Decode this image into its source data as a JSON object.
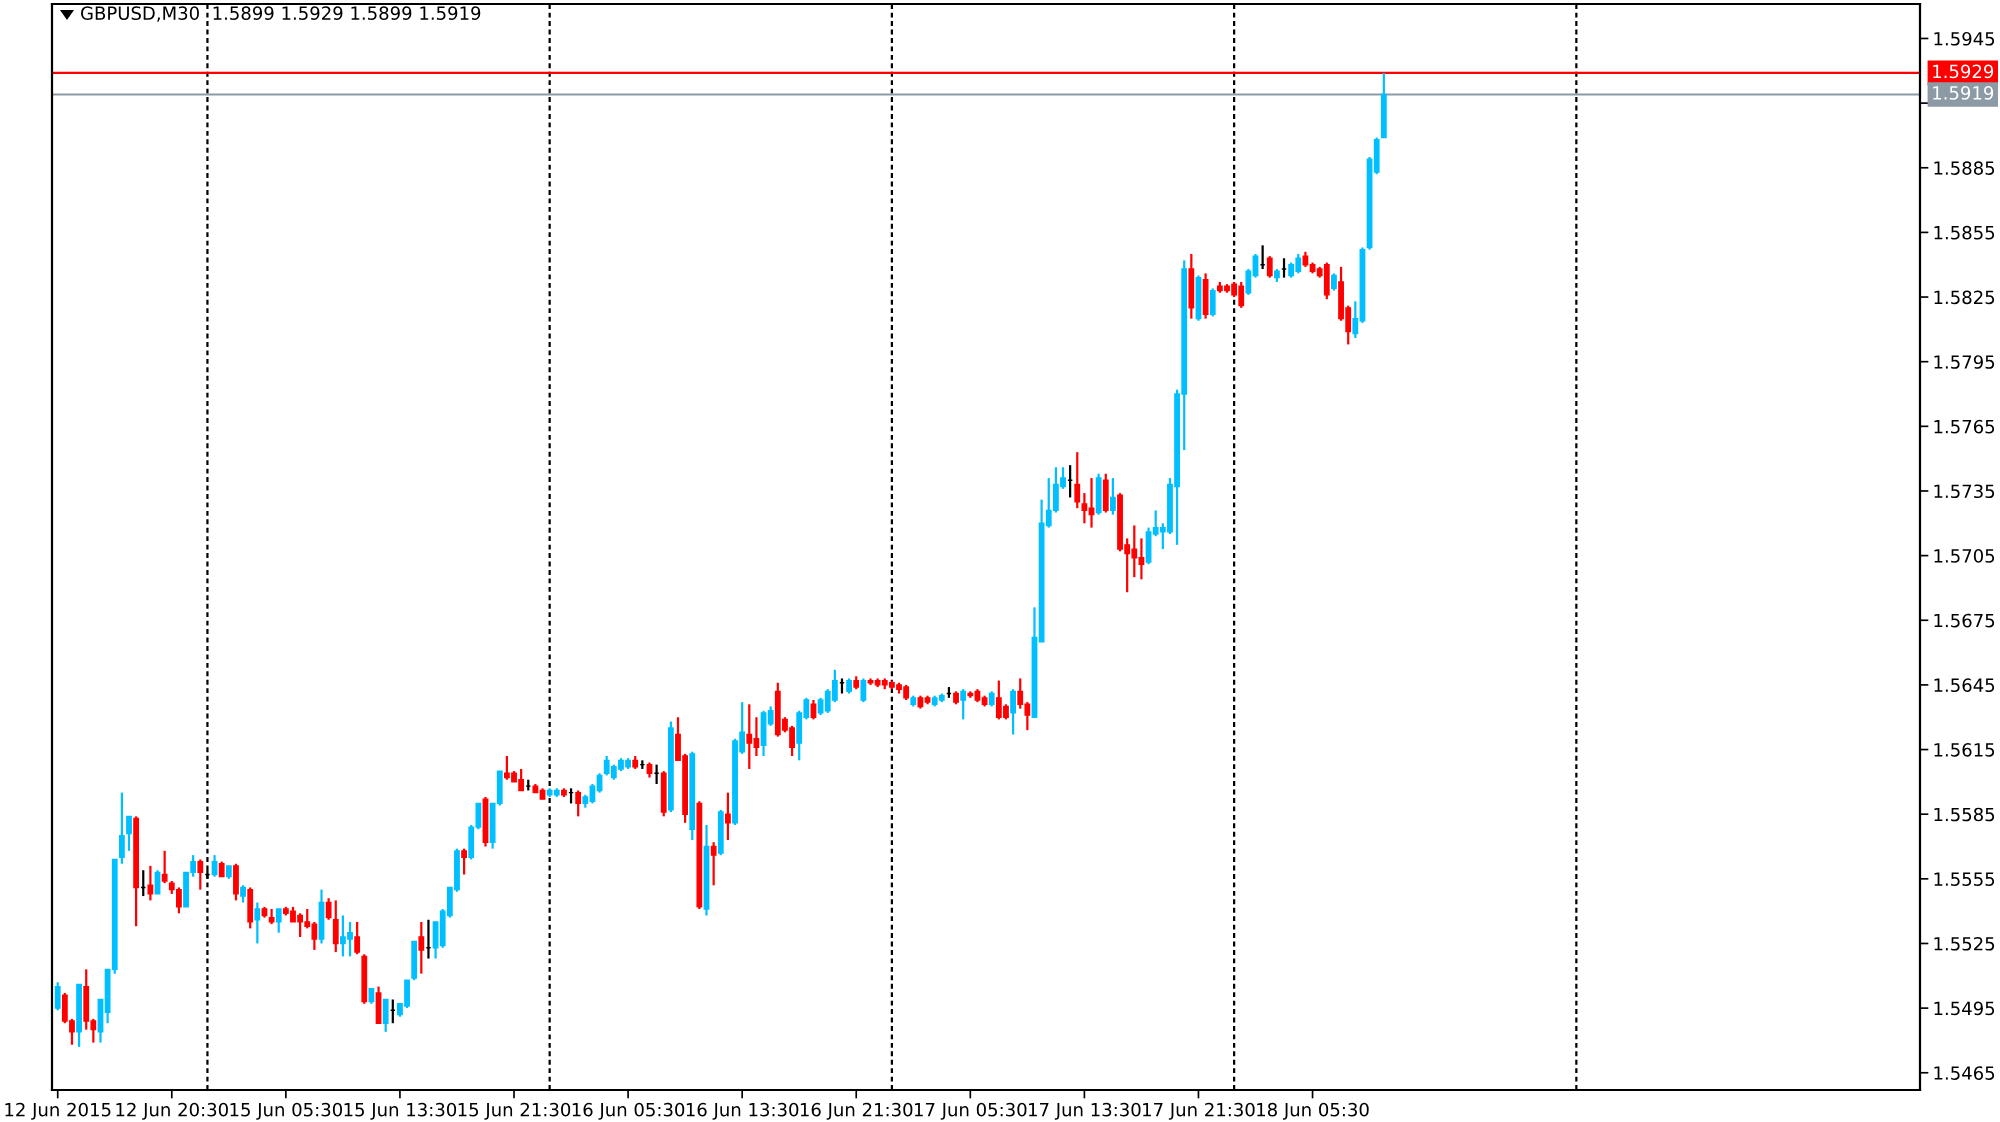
{
  "chart_data": {
    "type": "candlestick",
    "title": "GBPUSD,M30  1.5899 1.5929 1.5899 1.5919",
    "categories": [
      "12 Jun 2015",
      null,
      null,
      null,
      null,
      null,
      null,
      null,
      null,
      null,
      null,
      null,
      null,
      null,
      null,
      null,
      "12 Jun 20:30",
      null,
      null,
      null,
      null,
      null,
      null,
      null,
      null,
      null,
      null,
      null,
      null,
      null,
      null,
      null,
      "15 Jun 05:30",
      null,
      null,
      null,
      null,
      null,
      null,
      null,
      null,
      null,
      null,
      null,
      null,
      null,
      null,
      null,
      "15 Jun 13:30",
      null,
      null,
      null,
      null,
      null,
      null,
      null,
      null,
      null,
      null,
      null,
      null,
      null,
      null,
      null,
      "15 Jun 21:30",
      null,
      null,
      null,
      null,
      null,
      null,
      null,
      null,
      null,
      null,
      null,
      null,
      null,
      null,
      null,
      "16 Jun 05:30",
      null,
      null,
      null,
      null,
      null,
      null,
      null,
      null,
      null,
      null,
      null,
      null,
      null,
      null,
      null,
      "16 Jun 13:30",
      null,
      null,
      null,
      null,
      null,
      null,
      null,
      null,
      null,
      null,
      null,
      null,
      null,
      null,
      null,
      "16 Jun 21:30",
      null,
      null,
      null,
      null,
      null,
      null,
      null,
      null,
      null,
      null,
      null,
      null,
      null,
      null,
      null,
      "17 Jun 05:30",
      null,
      null,
      null,
      null,
      null,
      null,
      null,
      null,
      null,
      null,
      null,
      null,
      null,
      null,
      null,
      "17 Jun 13:30",
      null,
      null,
      null,
      null,
      null,
      null,
      null,
      null,
      null,
      null,
      null,
      null,
      null,
      null,
      null,
      "17 Jun 21:30",
      null,
      null,
      null,
      null,
      null,
      null,
      null,
      null,
      null,
      null,
      null,
      null,
      null,
      null,
      null,
      "18 Jun 05:30",
      null,
      null,
      null,
      null,
      null,
      null,
      null,
      null,
      null,
      null,
      null,
      null,
      null,
      null,
      null,
      null,
      null,
      null,
      null,
      null,
      null,
      null,
      null,
      null,
      null,
      null,
      null,
      null,
      null,
      null,
      null,
      null,
      null,
      null,
      null,
      null,
      null,
      null,
      null,
      null,
      null,
      null,
      null,
      null,
      null,
      null,
      null,
      null,
      null,
      null,
      null,
      null,
      null,
      null,
      null,
      null,
      null,
      null,
      null,
      null,
      null,
      null,
      null,
      null,
      null,
      null,
      null,
      null,
      null,
      null,
      null,
      null,
      null,
      null,
      null,
      null,
      null,
      null,
      null,
      null,
      null,
      null,
      null,
      null,
      null
    ],
    "ohlc": [
      [
        1.5495,
        1.5507,
        1.5494,
        1.5505
      ],
      [
        1.5501,
        1.5502,
        1.5488,
        1.5489
      ],
      [
        1.5489,
        1.549,
        1.5478,
        1.5484
      ],
      [
        1.5484,
        1.5506,
        1.5477,
        1.5506
      ],
      [
        1.5505,
        1.5513,
        1.5485,
        1.5489
      ],
      [
        1.5489,
        1.549,
        1.5479,
        1.5485
      ],
      [
        1.5484,
        1.5499,
        1.5479,
        1.5499
      ],
      [
        1.5493,
        1.5513,
        1.5488,
        1.5513
      ],
      [
        1.5513,
        1.5564,
        1.5511,
        1.5564
      ],
      [
        1.5565,
        1.5595,
        1.5562,
        1.5575
      ],
      [
        1.5576,
        1.5584,
        1.5568,
        1.5584
      ],
      [
        1.5583,
        1.5584,
        1.5533,
        1.5551
      ],
      [
        1.5551,
        1.5559,
        1.5547,
        1.5551
      ],
      [
        1.5552,
        1.5561,
        1.5545,
        1.5548
      ],
      [
        1.5548,
        1.5559,
        1.5548,
        1.5558
      ],
      [
        1.5557,
        1.5568,
        1.5553,
        1.5554
      ],
      [
        1.5553,
        1.5554,
        1.5548,
        1.555
      ],
      [
        1.555,
        1.5551,
        1.5539,
        1.5542
      ],
      [
        1.5542,
        1.5558,
        1.5542,
        1.5558
      ],
      [
        1.5558,
        1.5566,
        1.5556,
        1.5563
      ],
      [
        1.5563,
        1.5564,
        1.555,
        1.5558
      ],
      [
        1.5557,
        1.5559,
        1.5555,
        1.5557
      ],
      [
        1.5557,
        1.5566,
        1.5556,
        1.5563
      ],
      [
        1.5562,
        1.5563,
        1.5556,
        1.5556
      ],
      [
        1.5556,
        1.5561,
        1.5555,
        1.5561
      ],
      [
        1.5561,
        1.5562,
        1.5545,
        1.5548
      ],
      [
        1.5547,
        1.5552,
        1.5544,
        1.5551
      ],
      [
        1.555,
        1.5551,
        1.5532,
        1.5535
      ],
      [
        1.5536,
        1.5544,
        1.5525,
        1.5541
      ],
      [
        1.5541,
        1.5542,
        1.5537,
        1.5538
      ],
      [
        1.5537,
        1.5541,
        1.5534,
        1.5535
      ],
      [
        1.5535,
        1.5541,
        1.553,
        1.5541
      ],
      [
        1.5541,
        1.5542,
        1.5538,
        1.5539
      ],
      [
        1.554,
        1.5542,
        1.5535,
        1.5535
      ],
      [
        1.5538,
        1.5539,
        1.5528,
        1.5535
      ],
      [
        1.5535,
        1.5541,
        1.5532,
        1.5533
      ],
      [
        1.5534,
        1.5535,
        1.5522,
        1.5527
      ],
      [
        1.5527,
        1.555,
        1.5525,
        1.5544
      ],
      [
        1.5544,
        1.5546,
        1.5536,
        1.5537
      ],
      [
        1.5536,
        1.5545,
        1.5521,
        1.5525
      ],
      [
        1.5525,
        1.5538,
        1.5519,
        1.5528
      ],
      [
        1.5527,
        1.5535,
        1.5519,
        1.553
      ],
      [
        1.5528,
        1.5535,
        1.552,
        1.5521
      ],
      [
        1.5519,
        1.552,
        1.5497,
        1.5498
      ],
      [
        1.5498,
        1.5504,
        1.5497,
        1.5504
      ],
      [
        1.5502,
        1.5505,
        1.5488,
        1.5488
      ],
      [
        1.5488,
        1.5499,
        1.5484,
        1.5499
      ],
      [
        1.5494,
        1.5499,
        1.5488,
        1.5494
      ],
      [
        1.5492,
        1.5497,
        1.5491,
        1.5497
      ],
      [
        1.5496,
        1.5508,
        1.5495,
        1.5508
      ],
      [
        1.5509,
        1.5526,
        1.5508,
        1.5526
      ],
      [
        1.5528,
        1.5535,
        1.5511,
        1.5522
      ],
      [
        1.5523,
        1.5536,
        1.5518,
        1.5523
      ],
      [
        1.5523,
        1.5535,
        1.5518,
        1.5535
      ],
      [
        1.5524,
        1.5541,
        1.5523,
        1.554
      ],
      [
        1.5538,
        1.5551,
        1.5537,
        1.5551
      ],
      [
        1.555,
        1.5569,
        1.5549,
        1.5568
      ],
      [
        1.5568,
        1.5569,
        1.5557,
        1.5565
      ],
      [
        1.5565,
        1.558,
        1.5564,
        1.5579
      ],
      [
        1.5579,
        1.559,
        1.5578,
        1.559
      ],
      [
        1.5592,
        1.5593,
        1.557,
        1.5572
      ],
      [
        1.5572,
        1.559,
        1.5569,
        1.559
      ],
      [
        1.559,
        1.5605,
        1.5589,
        1.5605
      ],
      [
        1.5604,
        1.5612,
        1.5601,
        1.5602
      ],
      [
        1.5604,
        1.5605,
        1.56,
        1.56
      ],
      [
        1.5601,
        1.5606,
        1.5596,
        1.5596
      ],
      [
        1.5598,
        1.5601,
        1.5596,
        1.5598
      ],
      [
        1.5598,
        1.5599,
        1.5595,
        1.5595
      ],
      [
        1.5596,
        1.5597,
        1.5592,
        1.5592
      ],
      [
        1.5594,
        1.5597,
        1.5593,
        1.5596
      ],
      [
        1.5594,
        1.5597,
        1.5593,
        1.5596
      ],
      [
        1.5596,
        1.5597,
        1.5593,
        1.5594
      ],
      [
        1.5595,
        1.5597,
        1.559,
        1.5595
      ],
      [
        1.5595,
        1.5596,
        1.5584,
        1.559
      ],
      [
        1.559,
        1.5594,
        1.5588,
        1.5593
      ],
      [
        1.5591,
        1.5599,
        1.559,
        1.5598
      ],
      [
        1.5596,
        1.5604,
        1.5595,
        1.5603
      ],
      [
        1.5604,
        1.5612,
        1.5603,
        1.561
      ],
      [
        1.5602,
        1.5608,
        1.5601,
        1.5607
      ],
      [
        1.5606,
        1.5611,
        1.5605,
        1.561
      ],
      [
        1.5607,
        1.5611,
        1.5606,
        1.561
      ],
      [
        1.561,
        1.5612,
        1.5606,
        1.5607
      ],
      [
        1.5608,
        1.561,
        1.5606,
        1.5608
      ],
      [
        1.5608,
        1.5609,
        1.5602,
        1.5604
      ],
      [
        1.5604,
        1.5608,
        1.5599,
        1.5604
      ],
      [
        1.5604,
        1.5605,
        1.5584,
        1.5586
      ],
      [
        1.5587,
        1.5628,
        1.5586,
        1.5625
      ],
      [
        1.5622,
        1.563,
        1.561,
        1.561
      ],
      [
        1.5612,
        1.5613,
        1.5581,
        1.5585
      ],
      [
        1.5578,
        1.5614,
        1.5573,
        1.5613
      ],
      [
        1.559,
        1.5591,
        1.5541,
        1.5542
      ],
      [
        1.5541,
        1.558,
        1.5538,
        1.557
      ],
      [
        1.557,
        1.5572,
        1.5552,
        1.5566
      ],
      [
        1.5567,
        1.5587,
        1.5566,
        1.5586
      ],
      [
        1.5585,
        1.5595,
        1.5573,
        1.5581
      ],
      [
        1.5581,
        1.562,
        1.558,
        1.5619
      ],
      [
        1.5614,
        1.5637,
        1.5613,
        1.5623
      ],
      [
        1.5622,
        1.5636,
        1.5606,
        1.5618
      ],
      [
        1.562,
        1.563,
        1.5612,
        1.5616
      ],
      [
        1.5617,
        1.5633,
        1.5612,
        1.5632
      ],
      [
        1.5627,
        1.5635,
        1.5626,
        1.5633
      ],
      [
        1.5642,
        1.5646,
        1.5621,
        1.5622
      ],
      [
        1.5629,
        1.563,
        1.5623,
        1.5624
      ],
      [
        1.5625,
        1.5626,
        1.5612,
        1.5616
      ],
      [
        1.5618,
        1.5633,
        1.561,
        1.5632
      ],
      [
        1.563,
        1.5639,
        1.5629,
        1.5638
      ],
      [
        1.5636,
        1.5638,
        1.5629,
        1.563
      ],
      [
        1.5632,
        1.5639,
        1.5631,
        1.5638
      ],
      [
        1.5633,
        1.5643,
        1.5632,
        1.5642
      ],
      [
        1.5638,
        1.5652,
        1.5637,
        1.5647
      ],
      [
        1.5646,
        1.5648,
        1.5641,
        1.5646
      ],
      [
        1.5642,
        1.5648,
        1.5641,
        1.5647
      ],
      [
        1.5647,
        1.5649,
        1.5643,
        1.5644
      ],
      [
        1.5638,
        1.5648,
        1.5637,
        1.5647
      ],
      [
        1.5647,
        1.5648,
        1.5645,
        1.5646
      ],
      [
        1.5647,
        1.5648,
        1.5644,
        1.5645
      ],
      [
        1.5647,
        1.5648,
        1.5643,
        1.5645
      ],
      [
        1.5646,
        1.5647,
        1.5643,
        1.5644
      ],
      [
        1.5645,
        1.5646,
        1.5641,
        1.5643
      ],
      [
        1.5644,
        1.5645,
        1.5638,
        1.5639
      ],
      [
        1.5636,
        1.564,
        1.5635,
        1.5639
      ],
      [
        1.5639,
        1.564,
        1.5634,
        1.5635
      ],
      [
        1.5639,
        1.564,
        1.5636,
        1.5637
      ],
      [
        1.5636,
        1.564,
        1.5635,
        1.5639
      ],
      [
        1.5638,
        1.5641,
        1.5637,
        1.564
      ],
      [
        1.5641,
        1.5644,
        1.5639,
        1.5641
      ],
      [
        1.5641,
        1.5642,
        1.5636,
        1.5637
      ],
      [
        1.5638,
        1.5643,
        1.5629,
        1.5642
      ],
      [
        1.5641,
        1.5642,
        1.5639,
        1.564
      ],
      [
        1.5642,
        1.5643,
        1.5637,
        1.5638
      ],
      [
        1.5639,
        1.564,
        1.5635,
        1.5636
      ],
      [
        1.5636,
        1.5642,
        1.5635,
        1.5641
      ],
      [
        1.5639,
        1.5647,
        1.5629,
        1.563
      ],
      [
        1.5635,
        1.5636,
        1.5629,
        1.563
      ],
      [
        1.5632,
        1.5643,
        1.5622,
        1.5642
      ],
      [
        1.5642,
        1.5648,
        1.5634,
        1.5636
      ],
      [
        1.5636,
        1.5637,
        1.5624,
        1.5631
      ],
      [
        1.563,
        1.5681,
        1.563,
        1.5667
      ],
      [
        1.5665,
        1.5731,
        1.5665,
        1.572
      ],
      [
        1.5719,
        1.5741,
        1.5718,
        1.5726
      ],
      [
        1.5726,
        1.5746,
        1.5725,
        1.5738
      ],
      [
        1.5737,
        1.5746,
        1.5736,
        1.5741
      ],
      [
        1.574,
        1.5747,
        1.5732,
        1.574
      ],
      [
        1.5738,
        1.5753,
        1.5727,
        1.573
      ],
      [
        1.5729,
        1.5734,
        1.572,
        1.5726
      ],
      [
        1.5727,
        1.5741,
        1.5718,
        1.5724
      ],
      [
        1.5725,
        1.5743,
        1.5724,
        1.5741
      ],
      [
        1.574,
        1.5743,
        1.5725,
        1.5726
      ],
      [
        1.5726,
        1.5741,
        1.5724,
        1.5732
      ],
      [
        1.5733,
        1.5734,
        1.5707,
        1.5708
      ],
      [
        1.571,
        1.5713,
        1.5688,
        1.5706
      ],
      [
        1.5708,
        1.5719,
        1.5695,
        1.5704
      ],
      [
        1.5704,
        1.5713,
        1.5694,
        1.5701
      ],
      [
        1.5702,
        1.5718,
        1.5701,
        1.5716
      ],
      [
        1.5715,
        1.5726,
        1.5714,
        1.5718
      ],
      [
        1.5716,
        1.572,
        1.5708,
        1.5718
      ],
      [
        1.5716,
        1.5741,
        1.5715,
        1.5738
      ],
      [
        1.5737,
        1.5782,
        1.571,
        1.578
      ],
      [
        1.578,
        1.5842,
        1.5754,
        1.5838
      ],
      [
        1.5838,
        1.5845,
        1.5815,
        1.582
      ],
      [
        1.5815,
        1.5835,
        1.5814,
        1.5834
      ],
      [
        1.5833,
        1.5836,
        1.5815,
        1.5817
      ],
      [
        1.5817,
        1.5829,
        1.5816,
        1.5828
      ],
      [
        1.583,
        1.5832,
        1.5827,
        1.5828
      ],
      [
        1.583,
        1.5831,
        1.5827,
        1.5828
      ],
      [
        1.5831,
        1.5832,
        1.5825,
        1.5826
      ],
      [
        1.583,
        1.5832,
        1.582,
        1.5821
      ],
      [
        1.5827,
        1.5838,
        1.5826,
        1.5837
      ],
      [
        1.5835,
        1.5845,
        1.5834,
        1.5844
      ],
      [
        1.584,
        1.5849,
        1.5838,
        1.584
      ],
      [
        1.5843,
        1.5844,
        1.5834,
        1.5835
      ],
      [
        1.5834,
        1.5838,
        1.5832,
        1.5837
      ],
      [
        1.5838,
        1.5843,
        1.5834,
        1.5838
      ],
      [
        1.5835,
        1.5841,
        1.5834,
        1.584
      ],
      [
        1.5837,
        1.5845,
        1.5836,
        1.5843
      ],
      [
        1.5844,
        1.5846,
        1.5839,
        1.584
      ],
      [
        1.584,
        1.5841,
        1.5836,
        1.5837
      ],
      [
        1.5838,
        1.5839,
        1.5834,
        1.5835
      ],
      [
        1.584,
        1.5841,
        1.5824,
        1.5826
      ],
      [
        1.5829,
        1.5836,
        1.5828,
        1.5835
      ],
      [
        1.5832,
        1.5839,
        1.5814,
        1.5815
      ],
      [
        1.582,
        1.5821,
        1.5803,
        1.5809
      ],
      [
        1.5808,
        1.5823,
        1.5806,
        1.5815
      ],
      [
        1.5814,
        1.5848,
        1.5813,
        1.5847
      ],
      [
        1.5848,
        1.589,
        1.5847,
        1.5889
      ],
      [
        1.5883,
        1.5899,
        1.5882,
        1.5898
      ],
      [
        1.5899,
        1.5929,
        1.5899,
        1.5919
      ],
      null,
      null,
      null,
      null,
      null,
      null,
      null,
      null,
      null,
      null,
      null,
      null,
      null,
      null,
      null,
      null,
      null,
      null,
      null,
      null,
      null,
      null,
      null,
      null,
      null,
      null,
      null,
      null,
      null,
      null,
      null,
      null,
      null,
      null,
      null,
      null,
      null,
      null,
      null,
      null,
      null,
      null,
      null,
      null,
      null,
      null,
      null,
      null,
      null,
      null,
      null,
      null,
      null,
      null,
      null,
      null,
      null,
      null,
      null,
      null,
      null,
      null,
      null,
      null,
      null,
      null,
      null,
      null,
      null,
      null,
      null,
      null,
      null,
      null,
      null
    ],
    "colors": [
      "#00bfff",
      "#ff0000",
      "#ff0000",
      "#00bfff",
      "#ff0000",
      "#ff0000",
      "#00bfff",
      "#00bfff",
      "#00bfff",
      "#00bfff",
      "#00bfff",
      "#ff0000",
      "#000000",
      "#ff0000",
      "#00bfff",
      "#ff0000",
      "#ff0000",
      "#ff0000",
      "#00bfff",
      "#00bfff",
      "#ff0000",
      "#000000",
      "#00bfff",
      "#ff0000",
      "#00bfff",
      "#ff0000",
      "#00bfff",
      "#ff0000",
      "#00bfff",
      "#ff0000",
      "#ff0000",
      "#00bfff",
      "#ff0000",
      "#ff0000",
      "#ff0000",
      "#ff0000",
      "#ff0000",
      "#00bfff",
      "#ff0000",
      "#ff0000",
      "#00bfff",
      "#00bfff",
      "#ff0000",
      "#ff0000",
      "#00bfff",
      "#ff0000",
      "#00bfff",
      "#000000",
      "#00bfff",
      "#00bfff",
      "#00bfff",
      "#ff0000",
      "#000000",
      "#00bfff",
      "#00bfff",
      "#00bfff",
      "#00bfff",
      "#ff0000",
      "#00bfff",
      "#00bfff",
      "#ff0000",
      "#00bfff",
      "#00bfff",
      "#ff0000",
      "#ff0000",
      "#ff0000",
      "#000000",
      "#ff0000",
      "#ff0000",
      "#00bfff",
      "#00bfff",
      "#ff0000",
      "#000000",
      "#ff0000",
      "#00bfff",
      "#00bfff",
      "#00bfff",
      "#00bfff",
      "#00bfff",
      "#00bfff",
      "#00bfff",
      "#ff0000",
      "#000000",
      "#ff0000",
      "#000000",
      "#ff0000",
      "#00bfff",
      "#ff0000",
      "#ff0000",
      "#00bfff",
      "#ff0000",
      "#00bfff",
      "#ff0000",
      "#00bfff",
      "#ff0000",
      "#00bfff",
      "#00bfff",
      "#ff0000",
      "#ff0000",
      "#00bfff",
      "#00bfff",
      "#ff0000",
      "#ff0000",
      "#ff0000",
      "#00bfff",
      "#00bfff",
      "#ff0000",
      "#00bfff",
      "#00bfff",
      "#00bfff",
      "#000000",
      "#00bfff",
      "#ff0000",
      "#00bfff",
      "#ff0000",
      "#ff0000",
      "#ff0000",
      "#ff0000",
      "#ff0000",
      "#ff0000",
      "#00bfff",
      "#ff0000",
      "#ff0000",
      "#00bfff",
      "#00bfff",
      "#000000",
      "#ff0000",
      "#00bfff",
      "#ff0000",
      "#ff0000",
      "#ff0000",
      "#00bfff",
      "#ff0000",
      "#ff0000",
      "#00bfff",
      "#ff0000",
      "#ff0000",
      "#00bfff",
      "#00bfff",
      "#00bfff",
      "#00bfff",
      "#00bfff",
      "#000000",
      "#ff0000",
      "#ff0000",
      "#ff0000",
      "#00bfff",
      "#ff0000",
      "#00bfff",
      "#ff0000",
      "#ff0000",
      "#ff0000",
      "#ff0000",
      "#00bfff",
      "#00bfff",
      "#00bfff",
      "#00bfff",
      "#00bfff",
      "#00bfff",
      "#ff0000",
      "#00bfff",
      "#ff0000",
      "#00bfff",
      "#ff0000",
      "#ff0000",
      "#ff0000",
      "#ff0000",
      "#00bfff",
      "#00bfff",
      "#000000",
      "#ff0000",
      "#00bfff",
      "#000000",
      "#00bfff",
      "#00bfff",
      "#ff0000",
      "#ff0000",
      "#ff0000",
      "#ff0000",
      "#00bfff",
      "#ff0000",
      "#ff0000",
      "#00bfff",
      "#00bfff",
      "#00bfff",
      "#00bfff",
      "#00bfff",
      null,
      null,
      null,
      null,
      null,
      null,
      null,
      null,
      null,
      null,
      null,
      null,
      null,
      null,
      null,
      null,
      null,
      null,
      null,
      null,
      null,
      null,
      null,
      null,
      null,
      null,
      null,
      null,
      null,
      null,
      null,
      null,
      null,
      null,
      null,
      null,
      null,
      null,
      null,
      null,
      null,
      null,
      null,
      null,
      null,
      null,
      null,
      null,
      null,
      null,
      null,
      null,
      null,
      null,
      null,
      null,
      null,
      null,
      null,
      null,
      null,
      null,
      null,
      null,
      null,
      null,
      null,
      null,
      null,
      null,
      null,
      null,
      null,
      null,
      null
    ],
    "ylim": [
      1.5457,
      1.5961
    ],
    "yticks": [
      1.5465,
      1.5495,
      1.5525,
      1.5555,
      1.5585,
      1.5615,
      1.5645,
      1.5675,
      1.5705,
      1.5735,
      1.5765,
      1.5795,
      1.5825,
      1.5855,
      1.5885,
      {
        "value": 1.5915,
        "label": null
      },
      1.5945
    ],
    "ref_lines": [
      {
        "axis": "y",
        "value": 1.5929,
        "label": "1.5929",
        "color": "#ff0000"
      },
      {
        "axis": "y",
        "value": 1.5919,
        "label": "1.5919",
        "color": "#8c9aa6"
      }
    ]
  }
}
